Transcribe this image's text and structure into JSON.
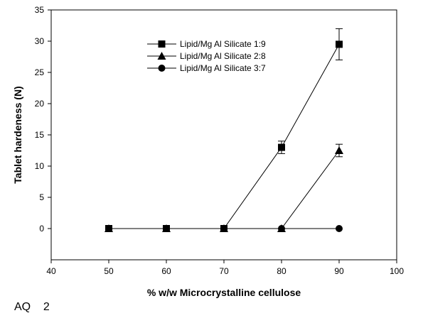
{
  "chart_data": {
    "type": "line",
    "xlabel": "% w/w Microcrystalline cellulose",
    "ylabel": "Tablet hardeness (N)",
    "xlim": [
      40,
      100
    ],
    "ylim": [
      -5,
      35
    ],
    "xticks": [
      40,
      50,
      60,
      70,
      80,
      90,
      100
    ],
    "yticks": [
      0,
      5,
      10,
      15,
      20,
      25,
      30,
      35
    ],
    "grid": false,
    "legend_position": "top-center",
    "series": [
      {
        "name": "Lipid/Mg Al Silicate 1:9",
        "marker": "square",
        "x": [
          50,
          60,
          70,
          80,
          90
        ],
        "y": [
          0,
          0,
          0,
          13,
          29.5
        ],
        "error": [
          0,
          0,
          0,
          1.0,
          2.5
        ]
      },
      {
        "name": "Lipid/Mg Al Silicate 2:8",
        "marker": "triangle",
        "x": [
          50,
          60,
          70,
          80,
          90
        ],
        "y": [
          0,
          0,
          0,
          0,
          12.5
        ],
        "error": [
          0,
          0,
          0,
          0,
          1.0
        ]
      },
      {
        "name": "Lipid/Mg Al Silicate 3:7",
        "marker": "circle",
        "x": [
          50,
          60,
          70,
          80,
          90
        ],
        "y": [
          0,
          0,
          0,
          0,
          0
        ],
        "error": [
          0,
          0,
          0,
          0,
          0
        ]
      }
    ]
  },
  "caption": "AQ    2",
  "colors": {
    "line": "#000000",
    "marker": "#000000"
  }
}
